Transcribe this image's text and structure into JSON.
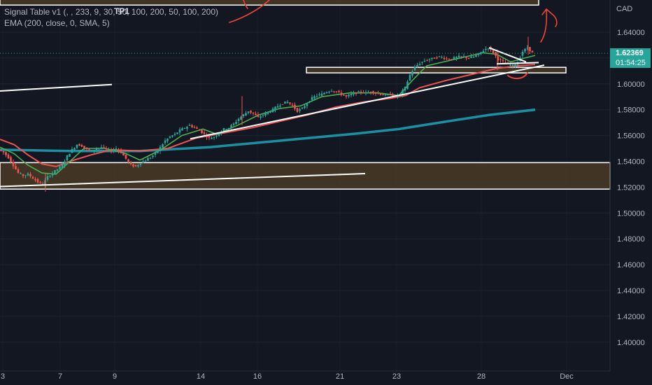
{
  "legend": {
    "indicator_line": "Signal Table v1 (, , 233, 9, 30, 50, 100, 200, 50, 100, 200)",
    "ema_line": "EMA (200, close, 0, SMA, 5)"
  },
  "tp_label": "TP1",
  "currency": "CAD",
  "last_price": "1.62369",
  "countdown": "01:54:25",
  "colors": {
    "background": "#131722",
    "up_candle": "#26a69a",
    "down_candle": "#ef5350",
    "zone_fill": "#4a3a26",
    "ema_200": "#1c8fa3",
    "fast_ma": "#4caf50",
    "slow_ma": "#ef5350",
    "drawing": "#ffffff",
    "arrow": "#f44336"
  },
  "chart_data": {
    "type": "candlestick",
    "symbol_currency": "CAD",
    "y_axis": {
      "ticks": [
        "1.64000",
        "1.62000",
        "1.60000",
        "1.58000",
        "1.56000",
        "1.54000",
        "1.52000",
        "1.50000",
        "1.48000",
        "1.46000",
        "1.44000",
        "1.42000",
        "1.40000"
      ],
      "range": [
        1.387,
        1.665
      ]
    },
    "x_axis": {
      "ticks": [
        "3",
        "7",
        "9",
        "14",
        "16",
        "21",
        "23",
        "28",
        "Dec"
      ]
    },
    "close_path": [
      [
        0,
        1.549
      ],
      [
        7,
        1.547
      ],
      [
        14,
        1.543
      ],
      [
        21,
        1.537
      ],
      [
        28,
        1.531
      ],
      [
        35,
        1.529
      ],
      [
        42,
        1.53
      ],
      [
        49,
        1.527
      ],
      [
        56,
        1.524
      ],
      [
        63,
        1.522
      ],
      [
        70,
        1.528
      ],
      [
        77,
        1.531
      ],
      [
        84,
        1.534
      ],
      [
        91,
        1.537
      ],
      [
        98,
        1.544
      ],
      [
        105,
        1.549
      ],
      [
        112,
        1.553
      ],
      [
        119,
        1.552
      ],
      [
        126,
        1.549
      ],
      [
        133,
        1.548
      ],
      [
        140,
        1.55
      ],
      [
        147,
        1.551
      ],
      [
        154,
        1.549
      ],
      [
        161,
        1.548
      ],
      [
        168,
        1.55
      ],
      [
        175,
        1.547
      ],
      [
        182,
        1.542
      ],
      [
        189,
        1.537
      ],
      [
        196,
        1.536
      ],
      [
        203,
        1.539
      ],
      [
        210,
        1.541
      ],
      [
        217,
        1.543
      ],
      [
        224,
        1.546
      ],
      [
        231,
        1.551
      ],
      [
        238,
        1.556
      ],
      [
        245,
        1.559
      ],
      [
        252,
        1.561
      ],
      [
        259,
        1.564
      ],
      [
        266,
        1.566
      ],
      [
        273,
        1.568
      ],
      [
        280,
        1.566
      ],
      [
        287,
        1.564
      ],
      [
        294,
        1.561
      ],
      [
        301,
        1.558
      ],
      [
        308,
        1.559
      ],
      [
        315,
        1.562
      ],
      [
        322,
        1.565
      ],
      [
        329,
        1.566
      ],
      [
        336,
        1.569
      ],
      [
        343,
        1.573
      ],
      [
        350,
        1.576
      ],
      [
        357,
        1.579
      ],
      [
        364,
        1.577
      ],
      [
        371,
        1.574
      ],
      [
        378,
        1.576
      ],
      [
        385,
        1.578
      ],
      [
        392,
        1.58
      ],
      [
        399,
        1.583
      ],
      [
        406,
        1.585
      ],
      [
        413,
        1.586
      ],
      [
        420,
        1.583
      ],
      [
        427,
        1.579
      ],
      [
        434,
        1.581
      ],
      [
        441,
        1.585
      ],
      [
        448,
        1.589
      ],
      [
        455,
        1.591
      ],
      [
        462,
        1.592
      ],
      [
        469,
        1.594
      ],
      [
        476,
        1.595
      ],
      [
        483,
        1.594
      ],
      [
        490,
        1.592
      ],
      [
        497,
        1.59
      ],
      [
        504,
        1.592
      ],
      [
        511,
        1.593
      ],
      [
        518,
        1.594
      ],
      [
        525,
        1.593
      ],
      [
        532,
        1.594
      ],
      [
        539,
        1.593
      ],
      [
        546,
        1.592
      ],
      [
        553,
        1.591
      ],
      [
        560,
        1.592
      ],
      [
        567,
        1.59
      ],
      [
        574,
        1.592
      ],
      [
        581,
        1.597
      ],
      [
        588,
        1.607
      ],
      [
        595,
        1.613
      ],
      [
        602,
        1.616
      ],
      [
        609,
        1.618
      ],
      [
        616,
        1.619
      ],
      [
        623,
        1.62
      ],
      [
        630,
        1.621
      ],
      [
        637,
        1.62
      ],
      [
        644,
        1.619
      ],
      [
        651,
        1.62
      ],
      [
        658,
        1.621
      ],
      [
        665,
        1.621
      ],
      [
        672,
        1.62
      ],
      [
        679,
        1.621
      ],
      [
        686,
        1.623
      ],
      [
        693,
        1.626
      ],
      [
        700,
        1.628
      ],
      [
        707,
        1.624
      ],
      [
        714,
        1.619
      ],
      [
        721,
        1.617
      ],
      [
        728,
        1.615
      ],
      [
        735,
        1.614
      ],
      [
        742,
        1.617
      ],
      [
        749,
        1.625
      ],
      [
        756,
        1.628
      ],
      [
        763,
        1.624
      ]
    ],
    "ema_200": [
      [
        0,
        1.549
      ],
      [
        100,
        1.548
      ],
      [
        200,
        1.548
      ],
      [
        300,
        1.551
      ],
      [
        400,
        1.556
      ],
      [
        500,
        1.561
      ],
      [
        570,
        1.565
      ],
      [
        640,
        1.571
      ],
      [
        700,
        1.576
      ],
      [
        765,
        1.58
      ]
    ],
    "slow_ma": [
      [
        0,
        1.557
      ],
      [
        20,
        1.553
      ],
      [
        40,
        1.545
      ],
      [
        60,
        1.538
      ],
      [
        80,
        1.536
      ],
      [
        100,
        1.54
      ],
      [
        130,
        1.545
      ],
      [
        160,
        1.549
      ],
      [
        200,
        1.548
      ],
      [
        240,
        1.55
      ],
      [
        280,
        1.558
      ],
      [
        320,
        1.562
      ],
      [
        360,
        1.566
      ],
      [
        400,
        1.571
      ],
      [
        440,
        1.576
      ],
      [
        480,
        1.582
      ],
      [
        520,
        1.586
      ],
      [
        560,
        1.589
      ],
      [
        580,
        1.591
      ],
      [
        600,
        1.597
      ],
      [
        640,
        1.603
      ],
      [
        680,
        1.608
      ],
      [
        710,
        1.612
      ],
      [
        740,
        1.614
      ],
      [
        765,
        1.615
      ]
    ],
    "fast_ma": [
      [
        0,
        1.551
      ],
      [
        20,
        1.546
      ],
      [
        40,
        1.537
      ],
      [
        60,
        1.531
      ],
      [
        80,
        1.53
      ],
      [
        100,
        1.54
      ],
      [
        120,
        1.55
      ],
      [
        150,
        1.55
      ],
      [
        180,
        1.546
      ],
      [
        200,
        1.541
      ],
      [
        230,
        1.549
      ],
      [
        260,
        1.56
      ],
      [
        290,
        1.565
      ],
      [
        310,
        1.561
      ],
      [
        340,
        1.568
      ],
      [
        370,
        1.576
      ],
      [
        400,
        1.581
      ],
      [
        430,
        1.583
      ],
      [
        460,
        1.59
      ],
      [
        500,
        1.593
      ],
      [
        540,
        1.593
      ],
      [
        570,
        1.591
      ],
      [
        590,
        1.603
      ],
      [
        610,
        1.614
      ],
      [
        650,
        1.619
      ],
      [
        690,
        1.624
      ],
      [
        710,
        1.623
      ],
      [
        730,
        1.617
      ],
      [
        750,
        1.62
      ],
      [
        765,
        1.622
      ]
    ],
    "zones": [
      {
        "x0": 0,
        "x1": 770,
        "y_top": 1.668,
        "y_bottom": 1.661
      },
      {
        "x0": 438,
        "x1": 809,
        "y_top": 1.6128,
        "y_bottom": 1.6085
      },
      {
        "x0": 0,
        "x1": 872,
        "y_top": 1.539,
        "y_bottom": 1.5185
      }
    ],
    "trendlines": [
      {
        "x0": 0,
        "y0": 1.5945,
        "x1": 160,
        "y1": 1.5995
      },
      {
        "x0": 0,
        "y0": 1.5205,
        "x1": 522,
        "y1": 1.5305
      },
      {
        "x0": 272,
        "y0": 1.5575,
        "x1": 778,
        "y1": 1.6145
      },
      {
        "x0": 699,
        "y0": 1.628,
        "x1": 752,
        "y1": 1.617
      },
      {
        "x0": 710,
        "y0": 1.6155,
        "x1": 770,
        "y1": 1.6165
      }
    ],
    "last_price": 1.62369
  }
}
